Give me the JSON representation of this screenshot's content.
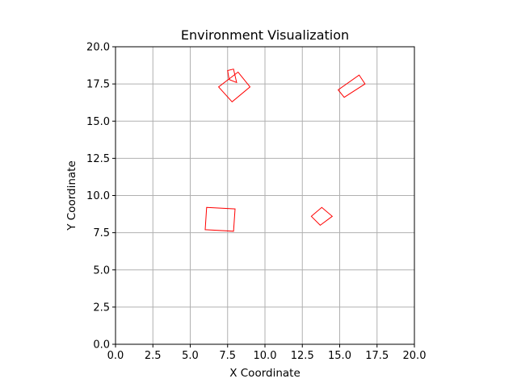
{
  "chart_data": {
    "type": "scatter",
    "title": "Environment Visualization",
    "xlabel": "X Coordinate",
    "ylabel": "Y Coordinate",
    "xlim": [
      0,
      20
    ],
    "ylim": [
      0,
      20
    ],
    "xticks": [
      "0.0",
      "2.5",
      "5.0",
      "7.5",
      "10.0",
      "12.5",
      "15.0",
      "17.5",
      "20.0"
    ],
    "yticks": [
      "0.0",
      "2.5",
      "5.0",
      "7.5",
      "10.0",
      "12.5",
      "15.0",
      "17.5",
      "20.0"
    ],
    "grid": true,
    "shape_color": "#ff0000",
    "grid_color": "#b0b0b0",
    "shapes": [
      {
        "type": "rectangle",
        "corners": [
          [
            6.1,
            9.2
          ],
          [
            8.0,
            9.1
          ],
          [
            7.9,
            7.6
          ],
          [
            6.0,
            7.7
          ]
        ]
      },
      {
        "type": "rectangle",
        "corners": [
          [
            13.8,
            9.2
          ],
          [
            14.5,
            8.6
          ],
          [
            13.7,
            8.0
          ],
          [
            13.1,
            8.6
          ]
        ]
      },
      {
        "type": "rectangle",
        "corners": [
          [
            7.5,
            18.4
          ],
          [
            7.9,
            18.5
          ],
          [
            8.1,
            17.6
          ],
          [
            7.6,
            17.8
          ]
        ]
      },
      {
        "type": "rectangle",
        "corners": [
          [
            8.2,
            18.3
          ],
          [
            9.0,
            17.3
          ],
          [
            7.8,
            16.3
          ],
          [
            6.9,
            17.3
          ]
        ]
      },
      {
        "type": "rectangle",
        "corners": [
          [
            16.3,
            18.1
          ],
          [
            16.7,
            17.5
          ],
          [
            15.3,
            16.6
          ],
          [
            14.9,
            17.1
          ]
        ]
      }
    ]
  }
}
